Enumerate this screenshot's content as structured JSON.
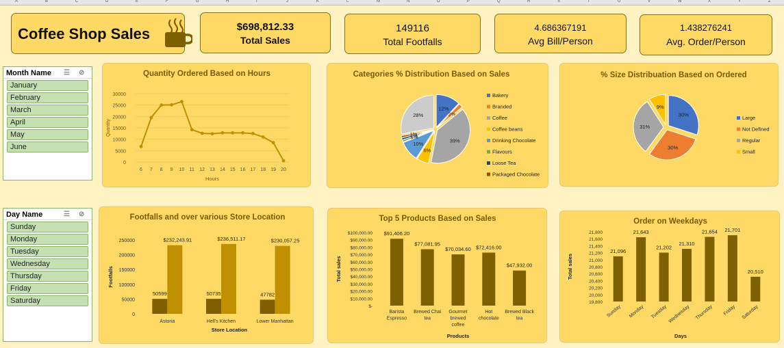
{
  "columns": [
    "A",
    "B",
    "C",
    "D",
    "E",
    "F",
    "G",
    "H",
    "I",
    "J",
    "K",
    "L",
    "M",
    "N",
    "O",
    "P",
    "Q",
    "R",
    "S",
    "T",
    "U",
    "V",
    "W",
    "X",
    "Y",
    "Z"
  ],
  "title": "Coffee Shop Sales",
  "kpis": [
    {
      "value": "$698,812.33",
      "label": "Total Sales"
    },
    {
      "value": "149116",
      "label": "Total Footfalls"
    },
    {
      "value": "4.686367191",
      "label": "Avg Bill/Person"
    },
    {
      "value": "1.438276241",
      "label": "Avg. Order/Person"
    }
  ],
  "month_slicer": {
    "title": "Month Name",
    "items": [
      "January",
      "February",
      "March",
      "April",
      "May",
      "June"
    ]
  },
  "day_slicer": {
    "title": "Day Name",
    "items": [
      "Sunday",
      "Monday",
      "Tuesday",
      "Wednesday",
      "Thursday",
      "Friday",
      "Saturday"
    ]
  },
  "chart_data": [
    {
      "type": "line",
      "title": "Quantity Ordered Based on Hours",
      "xlabel": "Hours",
      "ylabel": "Quantity",
      "x": [
        6,
        7,
        8,
        9,
        10,
        11,
        12,
        13,
        14,
        15,
        16,
        17,
        18,
        19,
        20
      ],
      "values": [
        6800,
        19500,
        25000,
        25100,
        26500,
        14200,
        12600,
        12400,
        12800,
        12800,
        12800,
        12500,
        11000,
        8500,
        600
      ],
      "ylim": [
        0,
        30000
      ],
      "yticks": [
        0,
        5000,
        10000,
        15000,
        20000,
        25000,
        30000
      ],
      "color": "#bf9000",
      "grid": true
    },
    {
      "type": "pie",
      "title": "Categories % Distribution Based on Sales",
      "legend": "right",
      "slices": [
        {
          "name": "Bakery",
          "value": 12,
          "label": "12%",
          "color": "#4472c4"
        },
        {
          "name": "Branded",
          "value": 2,
          "label": "2%",
          "color": "#ed7d31"
        },
        {
          "name": "Coffee",
          "value": 39,
          "label": "39%",
          "color": "#a5a5a5"
        },
        {
          "name": "Coffee beans",
          "value": 6,
          "label": "6%",
          "color": "#ffc000"
        },
        {
          "name": "Drinking Chocolate",
          "value": 10,
          "label": "10%",
          "color": "#5b9bd5"
        },
        {
          "name": "Flavours",
          "value": 1,
          "label": "1%",
          "color": "#70ad47"
        },
        {
          "name": "Loose Tea",
          "value": 1,
          "label": "1%",
          "color": "#264478"
        },
        {
          "name": "Packaged Chocolate",
          "value": 1,
          "label": "1%",
          "color": "#9e480e"
        },
        {
          "name": "Tea",
          "value": 28,
          "label": "28%",
          "color": "#cccccc"
        }
      ],
      "legend_entries": [
        "Bakery",
        "Branded",
        "Coffee",
        "Coffee beans",
        "Drinking Chocolate",
        "Flavours",
        "Loose Tea",
        "Packaged Chocolate"
      ]
    },
    {
      "type": "pie",
      "title": "% Size Distribuation Based on Ordered",
      "legend": "right",
      "slices": [
        {
          "name": "Large",
          "value": 30,
          "label": "30%",
          "color": "#4472c4"
        },
        {
          "name": "Not Defined",
          "value": 30,
          "label": "30%",
          "color": "#ed7d31"
        },
        {
          "name": "Regular",
          "value": 31,
          "label": "31%",
          "color": "#a5a5a5"
        },
        {
          "name": "Small",
          "value": 9,
          "label": "9%",
          "color": "#ffc000"
        }
      ],
      "legend_entries": [
        "Large",
        "Not Defined",
        "Regular",
        "Small"
      ]
    },
    {
      "type": "bar",
      "title": "Footfalls and over various Store Location",
      "xlabel": "Store Location",
      "ylabel": "Footfalls",
      "categories": [
        "Astoria",
        "Hell's Kitchen",
        "Lower Manhattan"
      ],
      "series": [
        {
          "values": [
            50599,
            50735,
            47782
          ],
          "labels": [
            "50599",
            "50735",
            "47782"
          ],
          "color": "#7f6000"
        },
        {
          "values": [
            232243.91,
            236511.17,
            230057.25
          ],
          "labels": [
            "$232,243.91",
            "$236,511.17",
            "$230,057.25"
          ],
          "color": "#bf9000"
        }
      ],
      "ylim": [
        0,
        250000
      ],
      "yticks": [
        0,
        50000,
        100000,
        150000,
        200000,
        250000
      ]
    },
    {
      "type": "bar",
      "title": "Top 5 Products Based on Sales",
      "xlabel": "Products",
      "ylabel": "Total sales",
      "categories": [
        [
          "Barista",
          "Espresso"
        ],
        [
          "Brewed Chai",
          "tea"
        ],
        [
          "Gourmet",
          "brewed",
          "coffee"
        ],
        [
          "Hot",
          "chocolate"
        ],
        [
          "Brewed Black",
          "tea"
        ]
      ],
      "values": [
        91406.2,
        77081.95,
        70034.6,
        72416.0,
        47932.0
      ],
      "labels": [
        "$91,406.20",
        "$77,081.95",
        "$70,034.60",
        "$72,416.00",
        "$47,932.00"
      ],
      "ylim": [
        0,
        100000
      ],
      "yticks": [
        "$-",
        "$10,000.00",
        "$20,000.00",
        "$30,000.00",
        "$40,000.00",
        "$50,000.00",
        "$60,000.00",
        "$70,000.00",
        "$80,000.00",
        "$90,000.00",
        "$100,000.00"
      ],
      "color": "#7f6000"
    },
    {
      "type": "bar",
      "title": "Order on Weekdays",
      "xlabel": "Days",
      "ylabel": "Total sales",
      "categories": [
        "Sunday",
        "Monday",
        "Tuesday",
        "Wednesday",
        "Thursday",
        "Friday",
        "Saturday"
      ],
      "values": [
        21096,
        21643,
        21202,
        21310,
        21654,
        21701,
        20510
      ],
      "labels": [
        "21,096",
        "21,643",
        "21,202",
        "21,310",
        "21,654",
        "21,701",
        "20,510"
      ],
      "ylim": [
        19800,
        21800
      ],
      "yticks": [
        "19,800",
        "20,000",
        "20,200",
        "20,400",
        "20,600",
        "20,800",
        "21,000",
        "21,200",
        "21,400",
        "21,600",
        "21,800"
      ],
      "color": "#7f6000"
    }
  ]
}
